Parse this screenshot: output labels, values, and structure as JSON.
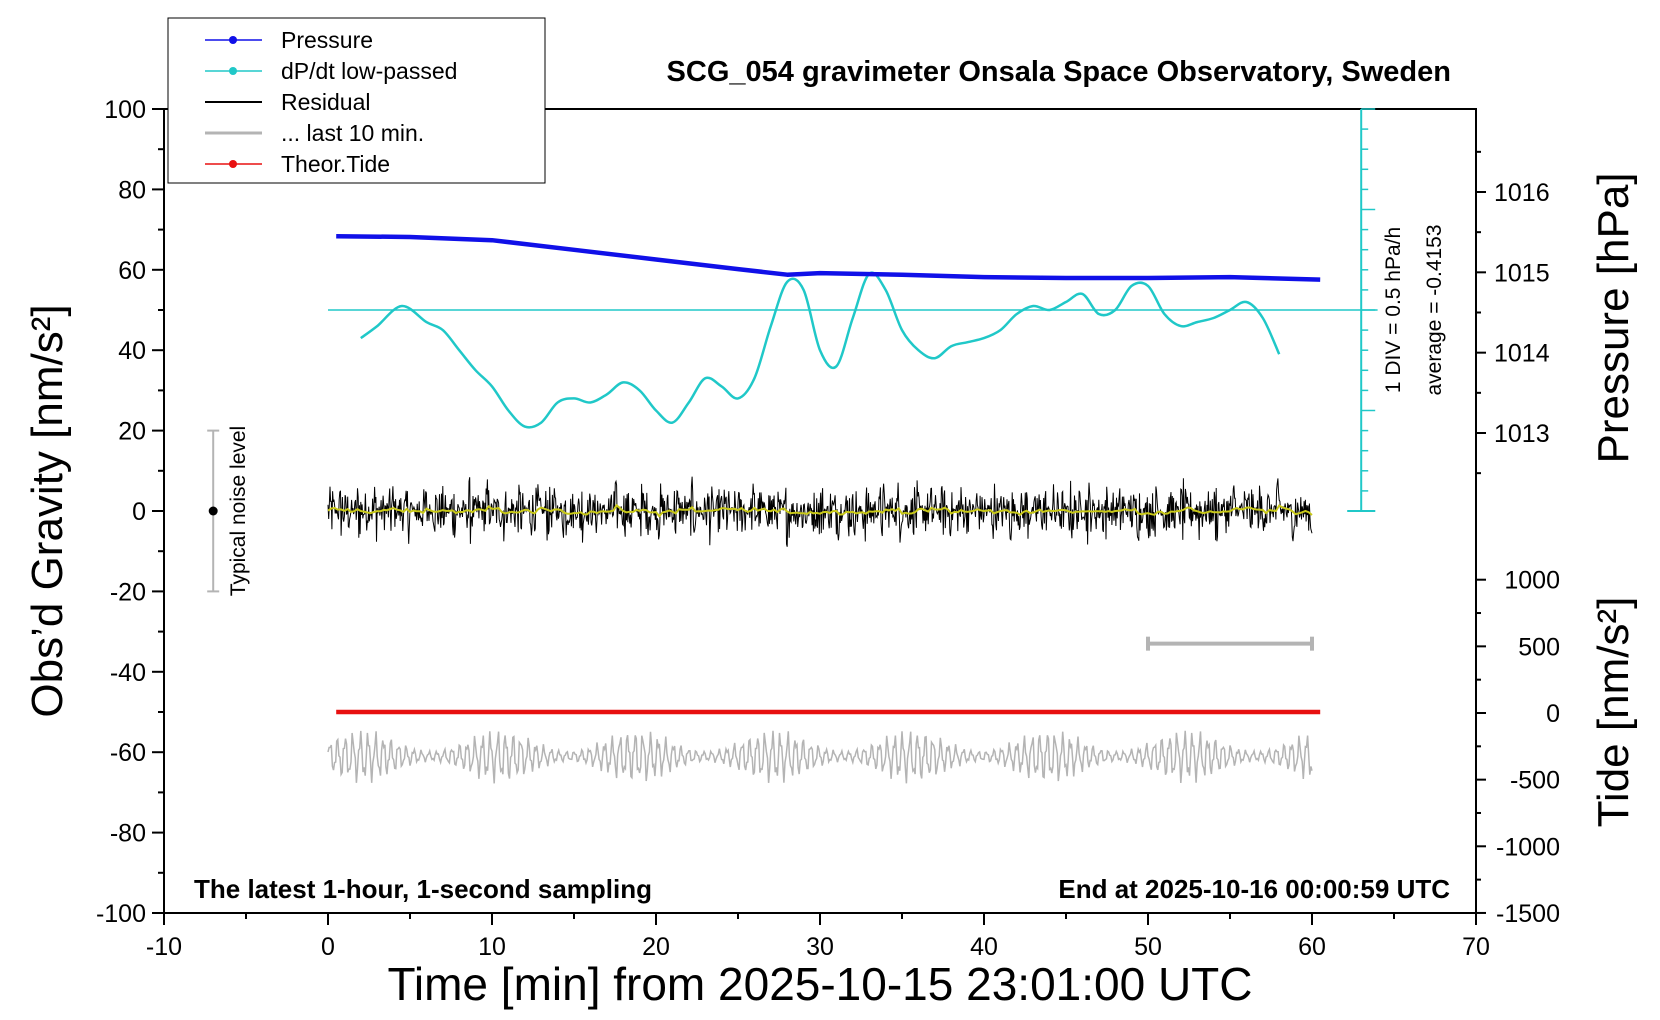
{
  "chart_data": {
    "type": "line",
    "title": "SCG_054 gravimeter Onsala Space Observatory, Sweden",
    "xlabel": "Time [min] from 2025-10-15 23:01:00 UTC",
    "ylabel_left": "Obs’d Gravity [nm/s²]",
    "ylabel_right_top": "Pressure [hPa]",
    "ylabel_right_bottom": "Tide [nm/s²]",
    "xlim": [
      -10,
      70
    ],
    "ylim": [
      -100,
      100
    ],
    "x_ticks": [
      "-10",
      "0",
      "10",
      "20",
      "30",
      "40",
      "50",
      "60",
      "70"
    ],
    "y_ticks": [
      "100",
      "80",
      "60",
      "40",
      "20",
      "0",
      "-20",
      "-40",
      "-60",
      "-80",
      "-100"
    ],
    "pressure_ticks": [
      "1016",
      "1015",
      "1014",
      "1013"
    ],
    "pressure_tick_values": [
      1016,
      1015,
      1014,
      1013
    ],
    "tide_ticks": [
      "1000",
      "500",
      "0",
      "-500",
      "-1000",
      "-1500"
    ],
    "tide_tick_values": [
      1000,
      500,
      0,
      -500,
      -1000,
      -1500
    ],
    "legend": [
      {
        "label": "Pressure",
        "color": "#1010e8"
      },
      {
        "label": "dP/dt low-passed",
        "color": "#20c8c8"
      },
      {
        "label": "Residual",
        "color": "#000000"
      },
      {
        "label": "... last 10 min.",
        "color": "#b4b4b4"
      },
      {
        "label": "Theor.Tide",
        "color": "#e81010"
      }
    ],
    "series": [
      {
        "name": "Pressure",
        "unit": "hPa",
        "x": [
          0.5,
          5,
          10,
          15,
          20,
          25,
          28,
          30,
          35,
          40,
          45,
          50,
          55,
          60.5
        ],
        "y": [
          1015.45,
          1015.44,
          1015.4,
          1015.28,
          1015.16,
          1015.04,
          1014.97,
          1014.99,
          1014.97,
          1014.94,
          1014.93,
          1014.93,
          1014.94,
          1014.91
        ]
      },
      {
        "name": "dP/dt low-passed",
        "unit": "nm/s²",
        "x": [
          2,
          3,
          4.5,
          6,
          7,
          8,
          9,
          10,
          11,
          12,
          13,
          14,
          15,
          16,
          17,
          18,
          19,
          20,
          21,
          22,
          23,
          24,
          25,
          26,
          27,
          28,
          29,
          30,
          31,
          32,
          33,
          34,
          35,
          36,
          37,
          38,
          39,
          40,
          41,
          42,
          43,
          44,
          45,
          46,
          47,
          48,
          49,
          50,
          51,
          52,
          53,
          54,
          55,
          56,
          57,
          58
        ],
        "y": [
          43,
          46,
          51,
          47,
          45,
          40,
          35,
          31,
          25,
          21,
          22,
          27,
          28,
          27,
          29,
          32,
          30,
          25,
          22,
          27,
          33,
          31,
          28,
          33,
          46,
          57,
          55,
          40,
          36,
          48,
          59,
          55,
          45,
          40,
          38,
          41,
          42,
          43,
          45,
          49,
          51,
          50,
          52,
          54,
          49,
          50,
          56,
          56,
          49,
          46,
          47,
          48,
          50,
          52,
          48,
          39
        ]
      },
      {
        "name": "Residual",
        "unit": "nm/s²",
        "x": [
          0,
          60
        ],
        "y": [
          0,
          0
        ],
        "noise_amplitude": 9
      },
      {
        "name": "... last 10 min.",
        "unit": "nm/s²",
        "x": [
          0,
          60
        ],
        "y": [
          -61,
          -61
        ],
        "noise_amplitude": 7
      },
      {
        "name": "Theor.Tide",
        "unit": "nm/s²",
        "x": [
          0.5,
          20,
          40,
          60.5
        ],
        "y": [
          -50,
          -50,
          -50,
          -50
        ]
      }
    ],
    "annotations": {
      "noise_bar_label": "Typical noise level",
      "noise_bar": {
        "x": -7,
        "low": -20,
        "high": 20
      },
      "div_scale": "1 DIV = 0.5 hPa/h",
      "average": "average = -0.4153",
      "dpdt_reference_level": 50,
      "dpdt_scale_x": 63,
      "last10_bar": {
        "x_start": 50,
        "x_end": 60,
        "y": -33
      },
      "note_left": "The latest 1-hour, 1-second sampling",
      "note_right": "End at 2025-10-16 00:00:59 UTC"
    },
    "colors": {
      "pressure": "#1010e8",
      "dpdt": "#20c8c8",
      "residual": "#000000",
      "residual_smooth": "#c8c818",
      "last10": "#b4b4b4",
      "tide": "#e81010"
    }
  }
}
